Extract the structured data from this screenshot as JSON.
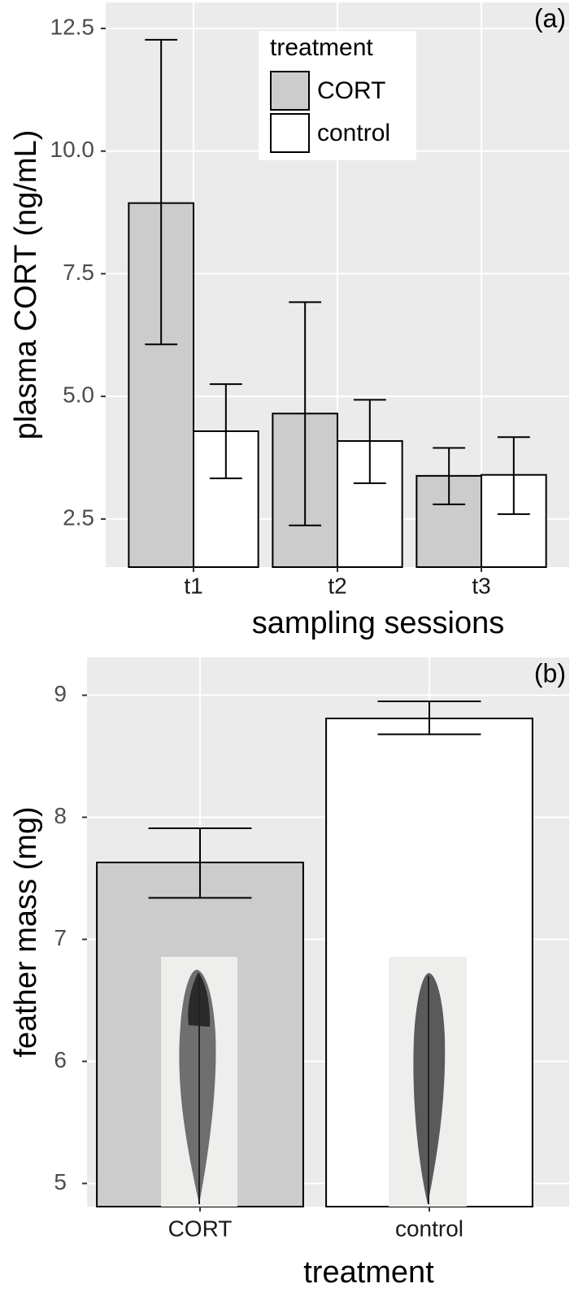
{
  "chart_data": [
    {
      "type": "bar",
      "annotation": "(a)",
      "xlabel": "sampling sessions",
      "ylabel": "plasma CORT (ng/mL)",
      "categories": [
        "t1",
        "t2",
        "t3"
      ],
      "series": [
        {
          "name": "CORT",
          "color": "#cccccc",
          "values": [
            8.94,
            4.65,
            3.38
          ],
          "lower": [
            6.06,
            2.37,
            2.8
          ],
          "upper": [
            12.27,
            6.92,
            3.95
          ]
        },
        {
          "name": "control",
          "color": "#ffffff",
          "values": [
            4.29,
            4.09,
            3.4
          ],
          "lower": [
            3.33,
            3.23,
            2.6
          ],
          "upper": [
            5.25,
            4.93,
            4.17
          ]
        }
      ],
      "ylim": [
        1.52,
        13.03
      ],
      "yticks": [
        2.5,
        {
          "value": 5,
          "label": "5.0"
        },
        7.5,
        {
          "value": 10,
          "label": "10.0"
        },
        12.5
      ],
      "grid": true,
      "legend": {
        "title": "treatment",
        "position": "top"
      }
    },
    {
      "type": "bar",
      "annotation": "(b)",
      "xlabel": "treatment",
      "ylabel": "feather mass (mg)",
      "categories": [
        "CORT",
        "control"
      ],
      "colors": [
        "#cccccc",
        "#ffffff"
      ],
      "values": [
        7.63,
        8.81
      ],
      "lower": [
        7.34,
        8.68
      ],
      "upper": [
        7.91,
        8.95
      ],
      "ylim": [
        4.81,
        9.31
      ],
      "yticks": [
        5,
        6,
        7,
        8,
        9
      ],
      "grid": true
    }
  ]
}
